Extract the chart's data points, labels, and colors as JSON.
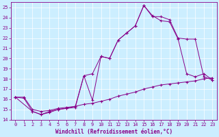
{
  "xlabel": "Windchill (Refroidissement éolien,°C)",
  "background_color": "#cceeff",
  "line_color": "#880088",
  "xlim": [
    -0.5,
    23.5
  ],
  "ylim": [
    14,
    25.5
  ],
  "yticks": [
    14,
    15,
    16,
    17,
    18,
    19,
    20,
    21,
    22,
    23,
    24,
    25
  ],
  "xticks": [
    0,
    1,
    2,
    3,
    4,
    5,
    6,
    7,
    8,
    9,
    10,
    11,
    12,
    13,
    14,
    15,
    16,
    17,
    18,
    19,
    20,
    21,
    22,
    23
  ],
  "line1_x": [
    0,
    1,
    2,
    3,
    4,
    5,
    6,
    7,
    8,
    9,
    10,
    11,
    12,
    13,
    14,
    15,
    16,
    17,
    18,
    19,
    20,
    21,
    22,
    23
  ],
  "line1_y": [
    16.2,
    16.1,
    14.8,
    14.5,
    14.7,
    15.0,
    15.1,
    15.2,
    18.3,
    15.9,
    20.2,
    20.0,
    21.8,
    22.5,
    23.2,
    25.2,
    24.2,
    23.7,
    23.6,
    21.9,
    18.5,
    18.2,
    18.5,
    17.9
  ],
  "line2_x": [
    0,
    2,
    3,
    4,
    5,
    6,
    7,
    8,
    9,
    10,
    11,
    12,
    13,
    14,
    15,
    16,
    17,
    18,
    19,
    20,
    21,
    22,
    23
  ],
  "line2_y": [
    16.2,
    14.8,
    14.5,
    14.8,
    15.0,
    15.1,
    15.3,
    18.3,
    18.5,
    20.2,
    20.0,
    21.8,
    22.5,
    23.2,
    25.2,
    24.1,
    24.1,
    23.8,
    22.0,
    21.9,
    21.9,
    18.2,
    17.9
  ],
  "line3_x": [
    0,
    1,
    2,
    3,
    4,
    5,
    6,
    7,
    8,
    9,
    10,
    11,
    12,
    13,
    14,
    15,
    16,
    17,
    18,
    19,
    20,
    21,
    22,
    23
  ],
  "line3_y": [
    16.2,
    16.2,
    15.0,
    14.8,
    14.9,
    15.1,
    15.2,
    15.3,
    15.5,
    15.6,
    15.8,
    16.0,
    16.3,
    16.5,
    16.7,
    17.0,
    17.2,
    17.4,
    17.5,
    17.6,
    17.7,
    17.8,
    18.0,
    18.1
  ],
  "tick_fontsize": 5,
  "xlabel_fontsize": 5.5,
  "grid_color": "white",
  "spine_color": "#880088"
}
